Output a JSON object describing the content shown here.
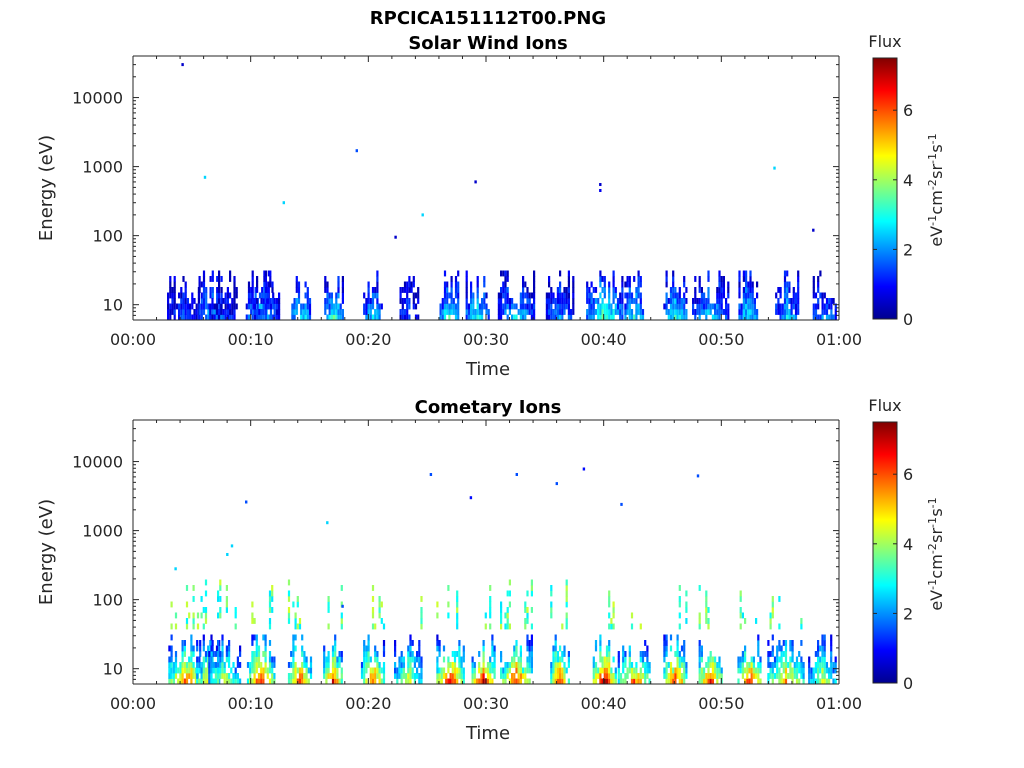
{
  "figure_title": "RPCICA151112T00.PNG",
  "colorbar_label": "Flux",
  "colorbar_unit_parts": [
    "eV",
    "-1",
    "cm",
    "-2",
    "sr",
    "-1",
    "s",
    "-1"
  ],
  "colors": {
    "jet": [
      "#00008f",
      "#0000ff",
      "#0080ff",
      "#00ffff",
      "#80ff80",
      "#ffff00",
      "#ff8000",
      "#ff0000",
      "#800000"
    ]
  },
  "chart_data": [
    {
      "type": "heatmap",
      "title": "Solar Wind Ions",
      "xlabel": "Time",
      "ylabel": "Energy (eV)",
      "xlim": [
        0,
        60
      ],
      "yscale": "log",
      "ylim": [
        6,
        40000
      ],
      "x_ticks": [
        0,
        10,
        20,
        30,
        40,
        50,
        60
      ],
      "x_tick_labels": [
        "00:00",
        "00:10",
        "00:20",
        "00:30",
        "00:40",
        "00:50",
        "01:00"
      ],
      "y_ticks": [
        10,
        100,
        1000,
        10000
      ],
      "y_tick_labels": [
        "10",
        "100",
        "1000",
        "10000"
      ],
      "colorbar": {
        "label": "Flux",
        "range": [
          0,
          7.5
        ],
        "ticks": [
          0,
          2,
          4,
          6
        ],
        "tick_labels": [
          "0",
          "2",
          "4",
          "6"
        ]
      },
      "grid": false,
      "bursts": [
        {
          "t": 4.2,
          "flux": 1.5
        },
        {
          "t": 6.5,
          "flux": 2.5
        },
        {
          "t": 7.6,
          "flux": 1.2
        },
        {
          "t": 10.7,
          "flux": 2.5
        },
        {
          "t": 11.2,
          "flux": 2.0
        },
        {
          "t": 14.2,
          "flux": 3.0
        },
        {
          "t": 17.0,
          "flux": 3.2
        },
        {
          "t": 20.3,
          "flux": 2.5
        },
        {
          "t": 23.4,
          "flux": 1.5
        },
        {
          "t": 26.8,
          "flux": 3.0
        },
        {
          "t": 29.2,
          "flux": 3.0
        },
        {
          "t": 32.5,
          "flux": 2.5
        },
        {
          "t": 36.2,
          "flux": 2.0
        },
        {
          "t": 40.0,
          "flux": 3.5
        },
        {
          "t": 42.5,
          "flux": 3.0
        },
        {
          "t": 46.0,
          "flux": 3.0
        },
        {
          "t": 49.0,
          "flux": 2.5
        },
        {
          "t": 52.2,
          "flux": 2.8
        },
        {
          "t": 55.5,
          "flux": 2.5
        },
        {
          "t": 58.7,
          "flux": 2.0
        }
      ],
      "points": [
        {
          "t": 4.2,
          "e": 30000,
          "flux": 0.5
        },
        {
          "t": 6.1,
          "e": 700,
          "flux": 2.5
        },
        {
          "t": 12.8,
          "e": 300,
          "flux": 2.5
        },
        {
          "t": 19.0,
          "e": 1700,
          "flux": 1.5
        },
        {
          "t": 22.3,
          "e": 95,
          "flux": 0.5
        },
        {
          "t": 24.6,
          "e": 200,
          "flux": 2.5
        },
        {
          "t": 29.1,
          "e": 600,
          "flux": 0.5
        },
        {
          "t": 39.7,
          "e": 550,
          "flux": 0.5
        },
        {
          "t": 39.7,
          "e": 450,
          "flux": 0.8
        },
        {
          "t": 54.5,
          "e": 950,
          "flux": 2.5
        },
        {
          "t": 57.8,
          "e": 120,
          "flux": 0.5
        }
      ]
    },
    {
      "type": "heatmap",
      "title": "Cometary Ions",
      "xlabel": "Time",
      "ylabel": "Energy (eV)",
      "xlim": [
        0,
        60
      ],
      "yscale": "log",
      "ylim": [
        6,
        40000
      ],
      "x_ticks": [
        0,
        10,
        20,
        30,
        40,
        50,
        60
      ],
      "x_tick_labels": [
        "00:00",
        "00:10",
        "00:20",
        "00:30",
        "00:40",
        "00:50",
        "01:00"
      ],
      "y_ticks": [
        10,
        100,
        1000,
        10000
      ],
      "y_tick_labels": [
        "10",
        "100",
        "1000",
        "10000"
      ],
      "colorbar": {
        "label": "Flux",
        "range": [
          0,
          7.5
        ],
        "ticks": [
          0,
          2,
          4,
          6
        ],
        "tick_labels": [
          "0",
          "2",
          "4",
          "6"
        ]
      },
      "grid": false,
      "bursts": [
        {
          "t": 4.5,
          "flux": 6.0
        },
        {
          "t": 6.3,
          "flux": 5.0
        },
        {
          "t": 7.7,
          "flux": 4.5
        },
        {
          "t": 10.8,
          "flux": 6.5
        },
        {
          "t": 14.1,
          "flux": 6.3
        },
        {
          "t": 16.9,
          "flux": 6.5
        },
        {
          "t": 20.3,
          "flux": 6.2
        },
        {
          "t": 23.3,
          "flux": 4.5
        },
        {
          "t": 26.9,
          "flux": 6.8
        },
        {
          "t": 29.7,
          "flux": 6.8
        },
        {
          "t": 32.5,
          "flux": 6.5
        },
        {
          "t": 36.2,
          "flux": 6.5
        },
        {
          "t": 40.0,
          "flux": 7.2
        },
        {
          "t": 42.5,
          "flux": 6.0
        },
        {
          "t": 46.0,
          "flux": 6.5
        },
        {
          "t": 49.0,
          "flux": 6.5
        },
        {
          "t": 52.3,
          "flux": 6.8
        },
        {
          "t": 55.4,
          "flux": 5.5
        },
        {
          "t": 58.5,
          "flux": 4.5
        }
      ],
      "points": [
        {
          "t": 3.6,
          "e": 280,
          "flux": 2.5
        },
        {
          "t": 8.0,
          "e": 450,
          "flux": 2.5
        },
        {
          "t": 8.4,
          "e": 600,
          "flux": 2.5
        },
        {
          "t": 9.6,
          "e": 2600,
          "flux": 1.5
        },
        {
          "t": 16.5,
          "e": 1300,
          "flux": 2.5
        },
        {
          "t": 25.3,
          "e": 6500,
          "flux": 1.5
        },
        {
          "t": 28.7,
          "e": 3000,
          "flux": 1.0
        },
        {
          "t": 32.6,
          "e": 6500,
          "flux": 1.5
        },
        {
          "t": 36.0,
          "e": 4800,
          "flux": 1.5
        },
        {
          "t": 38.3,
          "e": 7800,
          "flux": 1.0
        },
        {
          "t": 41.5,
          "e": 2400,
          "flux": 1.5
        },
        {
          "t": 48.0,
          "e": 6200,
          "flux": 1.5
        },
        {
          "t": 17.8,
          "e": 80,
          "flux": 1.5
        }
      ]
    }
  ]
}
